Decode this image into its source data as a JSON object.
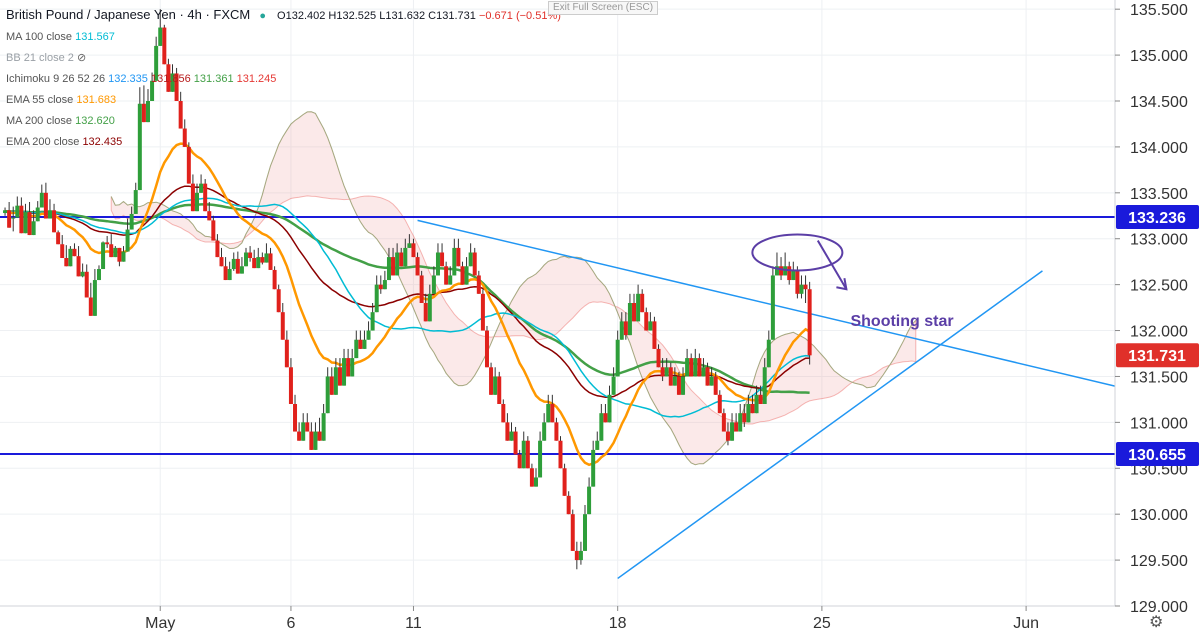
{
  "window": {
    "exit_fullscreen_label": "Exit Full Screen (ESC)",
    "settings_icon": "gear-icon"
  },
  "legend": {
    "symbol": "British Pound / Japanese Yen · 4h · FXCM",
    "ohlc": {
      "o": "O132.402",
      "h": "H132.525",
      "l": "L131.632",
      "c": "C131.731",
      "chg": "−0.671 (−0.51%)"
    },
    "indicators": [
      {
        "label": "MA 100 close",
        "value": "131.567",
        "color": "#00bcd4"
      },
      {
        "label": "BB 21 close 2",
        "value": "",
        "color": "#9aa0a6"
      },
      {
        "label": "Ichimoku 9 26 52 26",
        "value": "132.335",
        "extra": [
          "131.856",
          "131.361",
          "131.245"
        ],
        "extra_colors": [
          "#b71c1c",
          "#43a047",
          "#e53935"
        ],
        "color": "#2196f3"
      },
      {
        "label": "EMA 55 close",
        "value": "131.683",
        "color": "#ff9800"
      },
      {
        "label": "MA 200 close",
        "value": "132.620",
        "color": "#43a047"
      },
      {
        "label": "EMA 200 close",
        "value": "132.435",
        "color": "#8b0000"
      }
    ]
  },
  "chart_data": {
    "type": "candlestick",
    "timeframe": "4h",
    "ylim": [
      129.0,
      135.6
    ],
    "y_ticks": [
      "135.500",
      "135.000",
      "134.500",
      "134.000",
      "133.500",
      "133.000",
      "132.500",
      "132.000",
      "131.500",
      "131.000",
      "130.500",
      "130.000",
      "129.500",
      "129.000"
    ],
    "x_ticks": [
      {
        "label": "May",
        "bar": 38
      },
      {
        "label": "6",
        "bar": 70
      },
      {
        "label": "11",
        "bar": 100
      },
      {
        "label": "18",
        "bar": 150
      },
      {
        "label": "25",
        "bar": 200
      },
      {
        "label": "Jun",
        "bar": 250
      }
    ],
    "bar_count_visible": 273,
    "price_levels": [
      {
        "value": 133.236,
        "label": "133.236",
        "color": "#1a1adb"
      },
      {
        "value": 130.655,
        "label": "130.655",
        "color": "#1a1adb"
      }
    ],
    "last_price": {
      "value": 131.731,
      "label": "131.731",
      "color": "#e0302a"
    },
    "annotation": {
      "text": "Shooting star",
      "color": "#5b3ea6"
    },
    "trendlines": [
      {
        "from": {
          "bar": 150,
          "y": 129.3
        },
        "to": {
          "bar": 254,
          "y": 132.65
        },
        "color": "#2196f3"
      },
      {
        "from": {
          "bar": 101,
          "y": 133.2
        },
        "to": {
          "bar": 276,
          "y": 131.35
        },
        "color": "#2196f3"
      }
    ],
    "candles": [
      [
        133.28,
        133.31,
        133.25,
        133.34
      ],
      [
        133.31,
        133.12,
        133.22,
        133.4
      ],
      [
        133.22,
        133.23,
        133.08,
        133.35
      ],
      [
        133.23,
        133.36,
        133.25,
        133.46
      ],
      [
        133.36,
        133.06,
        133.17,
        133.45
      ],
      [
        133.06,
        133.29,
        133.3,
        133.38
      ],
      [
        133.29,
        133.04,
        133.15,
        133.4
      ],
      [
        133.04,
        133.19,
        133.2,
        133.31
      ],
      [
        133.19,
        133.34,
        133.25,
        133.41
      ],
      [
        133.34,
        133.5,
        133.38,
        133.59
      ],
      [
        133.5,
        133.22,
        133.32,
        133.61
      ],
      [
        133.22,
        133.31,
        133.3,
        133.43
      ],
      [
        133.31,
        133.07,
        133.14,
        133.38
      ],
      [
        133.07,
        132.94,
        133.01,
        133.09
      ],
      [
        132.94,
        132.79,
        132.83,
        133.04
      ],
      [
        132.79,
        132.7,
        132.78,
        132.93
      ],
      [
        132.7,
        132.89,
        132.77,
        132.92
      ],
      [
        132.89,
        132.81,
        132.84,
        132.95
      ],
      [
        132.81,
        132.59,
        132.69,
        132.92
      ],
      [
        132.59,
        132.64,
        132.58,
        132.73
      ],
      [
        132.64,
        132.36,
        132.49,
        132.72
      ],
      [
        132.36,
        132.16,
        132.22,
        132.52
      ],
      [
        132.16,
        132.55,
        132.33,
        132.67
      ],
      [
        132.55,
        132.67,
        132.61,
        132.71
      ],
      [
        132.67,
        132.96,
        132.78,
        132.97
      ],
      [
        132.96,
        132.94,
        132.9,
        133.03
      ],
      [
        132.94,
        132.8,
        132.84,
        133.05
      ],
      [
        132.8,
        132.9,
        132.86,
        132.92
      ],
      [
        132.9,
        132.75,
        132.7,
        132.9
      ],
      [
        132.75,
        132.86,
        132.77,
        132.92
      ],
      [
        132.86,
        133.1,
        132.97,
        133.22
      ],
      [
        133.1,
        133.27,
        133.2,
        133.35
      ],
      [
        133.27,
        133.53,
        133.35,
        133.61
      ],
      [
        133.53,
        134.47,
        134.55,
        134.65
      ],
      [
        134.47,
        134.27,
        134.42,
        134.67
      ],
      [
        134.27,
        134.5,
        134.47,
        134.63
      ],
      [
        134.5,
        134.72,
        134.6,
        134.81
      ],
      [
        134.72,
        135.1,
        135.0,
        135.2
      ],
      [
        135.1,
        135.3,
        135.2,
        135.5
      ],
      [
        135.3,
        134.9,
        135.0,
        135.33
      ],
      [
        134.9,
        134.6,
        134.7,
        134.96
      ],
      [
        134.6,
        134.8,
        134.72,
        134.9
      ],
      [
        134.8,
        134.5,
        134.55,
        134.86
      ],
      [
        134.5,
        134.2,
        134.3,
        134.6
      ],
      [
        134.2,
        134.0,
        134.05,
        134.3
      ],
      [
        134.0,
        133.6,
        133.7,
        134.05
      ],
      [
        133.6,
        133.3,
        133.4,
        133.7
      ],
      [
        133.3,
        133.5,
        133.45,
        133.6
      ],
      [
        133.5,
        133.6,
        133.55,
        133.7
      ],
      [
        133.6,
        133.3,
        133.35,
        133.65
      ],
      [
        133.3,
        133.2,
        133.25,
        133.4
      ],
      [
        133.2,
        132.98,
        133.0,
        133.25
      ],
      [
        132.98,
        132.8,
        132.85,
        133.05
      ],
      [
        132.8,
        132.7,
        132.75,
        132.9
      ],
      [
        132.7,
        132.55,
        132.6,
        132.8
      ],
      [
        132.55,
        132.67,
        132.6,
        132.75
      ],
      [
        132.67,
        132.78,
        132.65,
        132.85
      ],
      [
        132.78,
        132.62,
        132.69,
        132.86
      ],
      [
        132.62,
        132.7,
        132.66,
        132.8
      ],
      [
        132.7,
        132.85,
        132.75,
        132.9
      ],
      [
        132.85,
        132.79,
        132.75,
        132.92
      ],
      [
        132.79,
        132.68,
        132.7,
        132.88
      ],
      [
        132.68,
        132.8,
        132.75,
        132.9
      ],
      [
        132.8,
        132.74,
        132.72,
        132.85
      ],
      [
        132.74,
        132.84,
        132.78,
        132.95
      ],
      [
        132.84,
        132.66,
        132.7,
        132.9
      ],
      [
        132.66,
        132.45,
        132.55,
        132.7
      ],
      [
        132.45,
        132.2,
        132.3,
        132.5
      ],
      [
        132.2,
        131.9,
        132.0,
        132.3
      ],
      [
        131.9,
        131.6,
        131.7,
        132.0
      ],
      [
        131.6,
        131.2,
        131.35,
        131.7
      ],
      [
        131.2,
        130.9,
        131.0,
        131.3
      ],
      [
        130.9,
        130.8,
        130.85,
        131.0
      ],
      [
        130.8,
        131.0,
        130.9,
        131.1
      ],
      [
        131.0,
        130.9,
        130.95,
        131.1
      ],
      [
        130.9,
        130.7,
        130.75,
        131.0
      ],
      [
        130.7,
        130.9,
        130.82,
        131.0
      ],
      [
        130.9,
        130.8,
        130.82,
        131.05
      ],
      [
        130.8,
        131.1,
        130.95,
        131.2
      ],
      [
        131.1,
        131.5,
        131.3,
        131.6
      ],
      [
        131.5,
        131.3,
        131.35,
        131.6
      ],
      [
        131.3,
        131.6,
        131.45,
        131.7
      ],
      [
        131.6,
        131.4,
        131.45,
        131.7
      ],
      [
        131.4,
        131.7,
        131.55,
        131.8
      ],
      [
        131.7,
        131.5,
        131.55,
        131.8
      ],
      [
        131.5,
        131.7,
        131.6,
        131.8
      ],
      [
        131.7,
        131.9,
        131.8,
        132.0
      ],
      [
        131.9,
        131.8,
        131.85,
        132.0
      ],
      [
        131.8,
        131.9,
        131.85,
        132.0
      ],
      [
        131.9,
        132.0,
        131.95,
        132.1
      ],
      [
        132.0,
        132.2,
        132.1,
        132.3
      ],
      [
        132.2,
        132.5,
        132.35,
        132.6
      ],
      [
        132.5,
        132.45,
        132.4,
        132.6
      ],
      [
        132.45,
        132.55,
        132.5,
        132.65
      ],
      [
        132.55,
        132.8,
        132.65,
        132.9
      ],
      [
        132.8,
        132.6,
        132.65,
        132.9
      ],
      [
        132.6,
        132.85,
        132.7,
        132.95
      ],
      [
        132.85,
        132.7,
        132.72,
        132.9
      ],
      [
        132.7,
        132.9,
        132.8,
        133.0
      ],
      [
        132.9,
        132.95,
        132.9,
        133.05
      ],
      [
        132.95,
        132.8,
        132.82,
        133.0
      ],
      [
        132.8,
        132.6,
        132.65,
        132.85
      ],
      [
        132.6,
        132.3,
        132.4,
        132.65
      ],
      [
        132.3,
        132.1,
        132.15,
        132.4
      ],
      [
        132.1,
        132.4,
        132.3,
        132.5
      ],
      [
        132.4,
        132.6,
        132.5,
        132.7
      ],
      [
        132.6,
        132.85,
        132.75,
        132.95
      ],
      [
        132.85,
        132.7,
        132.72,
        132.95
      ],
      [
        132.7,
        132.5,
        132.55,
        132.75
      ],
      [
        132.5,
        132.6,
        132.55,
        132.7
      ],
      [
        132.6,
        132.9,
        132.75,
        133.0
      ],
      [
        132.9,
        132.7,
        132.75,
        133.0
      ],
      [
        132.7,
        132.5,
        132.55,
        132.75
      ],
      [
        132.5,
        132.7,
        132.6,
        132.8
      ],
      [
        132.7,
        132.85,
        132.75,
        132.95
      ],
      [
        132.85,
        132.6,
        132.65,
        132.9
      ],
      [
        132.6,
        132.4,
        132.45,
        132.65
      ],
      [
        132.4,
        132.0,
        132.1,
        132.45
      ],
      [
        132.0,
        131.6,
        131.7,
        132.05
      ],
      [
        131.6,
        131.3,
        131.4,
        131.65
      ],
      [
        131.3,
        131.5,
        131.4,
        131.6
      ],
      [
        131.5,
        131.2,
        131.25,
        131.55
      ],
      [
        131.2,
        131.0,
        131.05,
        131.25
      ],
      [
        131.0,
        130.8,
        130.85,
        131.1
      ],
      [
        130.8,
        130.9,
        130.85,
        131.0
      ],
      [
        130.9,
        130.65,
        130.7,
        130.95
      ],
      [
        130.65,
        130.5,
        130.55,
        130.7
      ],
      [
        130.5,
        130.8,
        130.65,
        130.9
      ],
      [
        130.8,
        130.5,
        130.55,
        130.85
      ],
      [
        130.5,
        130.3,
        130.35,
        130.55
      ],
      [
        130.3,
        130.4,
        130.35,
        130.5
      ],
      [
        130.4,
        130.8,
        130.6,
        130.9
      ],
      [
        130.8,
        131.0,
        130.9,
        131.1
      ],
      [
        131.0,
        131.2,
        131.1,
        131.3
      ],
      [
        131.2,
        131.0,
        131.05,
        131.3
      ],
      [
        131.0,
        130.8,
        130.85,
        131.05
      ],
      [
        130.8,
        130.5,
        130.55,
        130.85
      ],
      [
        130.5,
        130.2,
        130.25,
        130.55
      ],
      [
        130.2,
        130.0,
        130.05,
        130.25
      ],
      [
        130.0,
        129.6,
        129.65,
        130.05
      ],
      [
        129.6,
        129.5,
        129.4,
        129.7
      ],
      [
        129.5,
        129.6,
        129.45,
        129.7
      ],
      [
        129.6,
        130.0,
        129.8,
        130.1
      ],
      [
        130.0,
        130.3,
        130.15,
        130.4
      ],
      [
        130.3,
        130.7,
        130.5,
        130.8
      ],
      [
        130.7,
        130.8,
        130.7,
        130.9
      ],
      [
        130.8,
        131.1,
        130.95,
        131.2
      ],
      [
        131.1,
        131.0,
        131.0,
        131.2
      ],
      [
        131.0,
        131.3,
        131.15,
        131.4
      ],
      [
        131.3,
        131.5,
        131.4,
        131.6
      ],
      [
        131.5,
        131.9,
        131.7,
        132.0
      ],
      [
        131.9,
        132.1,
        132.0,
        132.2
      ],
      [
        132.1,
        131.95,
        131.9,
        132.2
      ],
      [
        131.95,
        132.3,
        132.1,
        132.4
      ],
      [
        132.3,
        132.1,
        132.1,
        132.4
      ],
      [
        132.1,
        132.4,
        132.25,
        132.5
      ],
      [
        132.4,
        132.2,
        132.2,
        132.45
      ],
      [
        132.2,
        132.0,
        132.05,
        132.25
      ],
      [
        132.0,
        132.1,
        132.0,
        132.2
      ],
      [
        132.1,
        131.8,
        131.85,
        132.15
      ],
      [
        131.8,
        131.6,
        131.65,
        131.85
      ],
      [
        131.6,
        131.5,
        131.45,
        131.7
      ],
      [
        131.5,
        131.6,
        131.5,
        131.7
      ],
      [
        131.6,
        131.4,
        131.4,
        131.65
      ],
      [
        131.4,
        131.5,
        131.4,
        131.6
      ],
      [
        131.5,
        131.3,
        131.3,
        131.55
      ],
      [
        131.3,
        131.5,
        131.4,
        131.6
      ],
      [
        131.5,
        131.7,
        131.6,
        131.8
      ],
      [
        131.7,
        131.5,
        131.5,
        131.75
      ],
      [
        131.5,
        131.7,
        131.6,
        131.8
      ],
      [
        131.7,
        131.5,
        131.5,
        131.75
      ],
      [
        131.5,
        131.6,
        131.5,
        131.7
      ],
      [
        131.6,
        131.4,
        131.4,
        131.65
      ],
      [
        131.4,
        131.5,
        131.4,
        131.6
      ],
      [
        131.5,
        131.3,
        131.3,
        131.55
      ],
      [
        131.3,
        131.1,
        131.1,
        131.35
      ],
      [
        131.1,
        130.9,
        130.9,
        131.15
      ],
      [
        130.9,
        130.8,
        130.75,
        131.0
      ],
      [
        130.8,
        131.0,
        130.9,
        131.1
      ],
      [
        131.0,
        130.9,
        130.9,
        131.1
      ],
      [
        130.9,
        131.1,
        131.0,
        131.2
      ],
      [
        131.1,
        131.0,
        130.95,
        131.2
      ],
      [
        131.0,
        131.2,
        131.1,
        131.3
      ],
      [
        131.2,
        131.1,
        131.1,
        131.3
      ],
      [
        131.1,
        131.3,
        131.2,
        131.4
      ],
      [
        131.3,
        131.2,
        131.2,
        131.4
      ],
      [
        131.2,
        131.6,
        131.4,
        131.7
      ],
      [
        131.6,
        131.9,
        131.75,
        132.0
      ],
      [
        131.9,
        132.6,
        132.3,
        132.7
      ],
      [
        132.6,
        132.7,
        132.6,
        132.85
      ],
      [
        132.7,
        132.6,
        132.55,
        132.8
      ],
      [
        132.6,
        132.7,
        132.6,
        132.85
      ],
      [
        132.7,
        132.55,
        132.5,
        132.75
      ],
      [
        132.55,
        132.65,
        132.55,
        132.75
      ],
      [
        132.65,
        132.4,
        132.35,
        132.7
      ],
      [
        132.4,
        132.5,
        132.35,
        132.6
      ],
      [
        132.5,
        132.45,
        132.3,
        132.6
      ],
      [
        132.45,
        131.73,
        131.63,
        132.53
      ]
    ]
  }
}
